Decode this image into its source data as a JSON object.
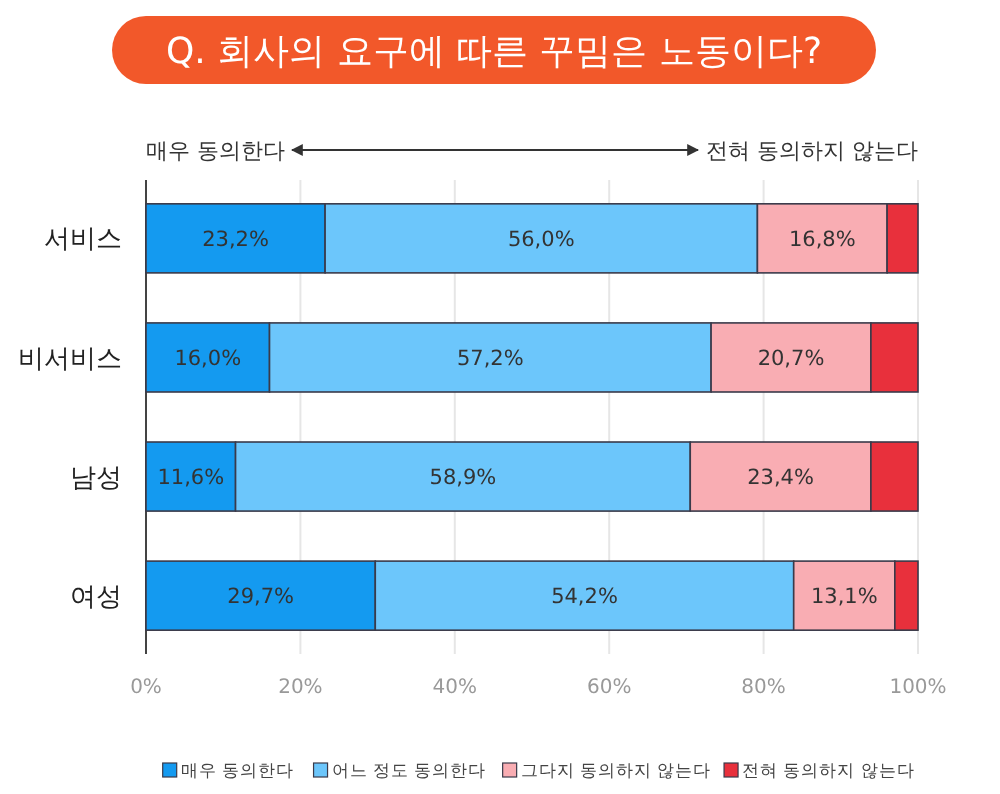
{
  "chart_data": {
    "type": "bar",
    "orientation": "horizontal",
    "stacked": true,
    "title": "Q. 회사의 요구에 따른 꾸밈은 노동이다?",
    "annotations": [
      "매우 동의한다",
      "전혀 동의하지 않는다"
    ],
    "categories": [
      "서비스",
      "비서비스",
      "남성",
      "여성"
    ],
    "series": [
      {
        "name": "매우 동의한다",
        "color": "#149af0",
        "values": [
          23.2,
          16.0,
          11.6,
          29.7
        ],
        "value_labels": [
          "23,2%",
          "16,0%",
          "11,6%",
          "29,7%"
        ]
      },
      {
        "name": "어느 정도 동의한다",
        "color": "#6cc6fb",
        "values": [
          56.0,
          57.2,
          58.9,
          54.2
        ],
        "value_labels": [
          "56,0%",
          "57,2%",
          "58,9%",
          "54,2%"
        ]
      },
      {
        "name": "그다지 동의하지 않는다",
        "color": "#f9adb3",
        "values": [
          16.8,
          20.7,
          23.4,
          13.1
        ],
        "value_labels": [
          "16,8%",
          "20,7%",
          "23,4%",
          "13,1%"
        ]
      },
      {
        "name": "전혀 동의하지 않는다",
        "color": "#e8303c",
        "values": [
          4.0,
          6.1,
          6.1,
          3.0
        ],
        "value_labels": [
          null,
          null,
          null,
          null
        ]
      }
    ],
    "xlim": [
      0,
      100
    ],
    "xticks": [
      {
        "value": 0,
        "label": "0%"
      },
      {
        "value": 20,
        "label": "20%"
      },
      {
        "value": 40,
        "label": "40%"
      },
      {
        "value": 60,
        "label": "60%"
      },
      {
        "value": 80,
        "label": "80%"
      },
      {
        "value": 100,
        "label": "100%"
      }
    ],
    "grid": "x",
    "legend": "bottom"
  }
}
